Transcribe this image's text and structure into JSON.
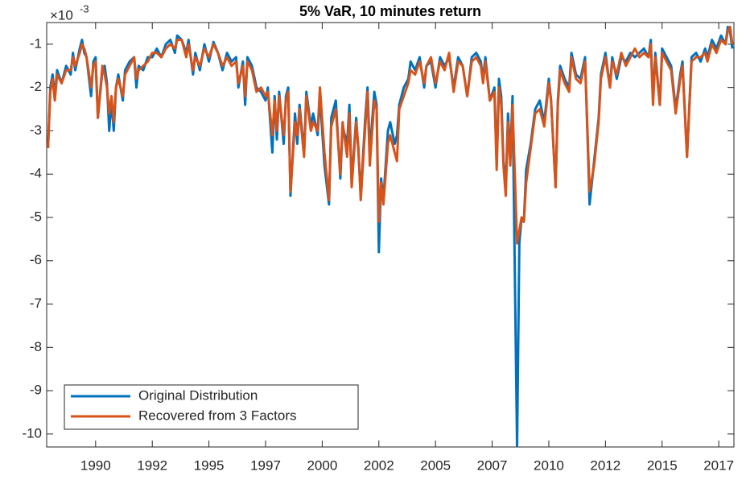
{
  "chart_data": {
    "type": "line",
    "title": "5% VaR, 10 minutes return",
    "y_multiplier_base": "×10",
    "y_multiplier_power": -3,
    "x": [
      1987.9,
      1988.0,
      1988.1,
      1988.2,
      1988.3,
      1988.5,
      1988.7,
      1988.9,
      1989.0,
      1989.1,
      1989.3,
      1989.4,
      1989.5,
      1989.6,
      1989.8,
      1989.9,
      1990.0,
      1990.1,
      1990.3,
      1990.4,
      1990.5,
      1990.6,
      1990.7,
      1990.8,
      1990.9,
      1991.0,
      1991.2,
      1991.3,
      1991.5,
      1991.7,
      1991.8,
      1991.9,
      1992.1,
      1992.3,
      1992.5,
      1992.7,
      1992.9,
      1993.1,
      1993.3,
      1993.5,
      1993.6,
      1993.8,
      1994.0,
      1994.1,
      1994.3,
      1994.4,
      1994.6,
      1994.8,
      1995.0,
      1995.2,
      1995.4,
      1995.6,
      1995.8,
      1996.0,
      1996.2,
      1996.3,
      1996.5,
      1996.6,
      1996.7,
      1996.9,
      1997.1,
      1997.3,
      1997.5,
      1997.6,
      1997.8,
      1997.9,
      1998.0,
      1998.1,
      1998.3,
      1998.4,
      1998.5,
      1998.6,
      1998.8,
      1998.9,
      1999.0,
      1999.2,
      1999.3,
      1999.5,
      1999.6,
      1999.8,
      1999.9,
      2000.1,
      2000.3,
      2000.4,
      2000.6,
      2000.8,
      2000.9,
      2001.1,
      2001.2,
      2001.3,
      2001.5,
      2001.6,
      2001.7,
      2001.9,
      2002.0,
      2002.1,
      2002.3,
      2002.4,
      2002.5,
      2002.6,
      2002.7,
      2002.9,
      2003.0,
      2003.2,
      2003.3,
      2003.4,
      2003.6,
      2003.8,
      2003.9,
      2004.1,
      2004.3,
      2004.5,
      2004.6,
      2004.8,
      2005.0,
      2005.2,
      2005.4,
      2005.6,
      2005.8,
      2006.0,
      2006.2,
      2006.4,
      2006.6,
      2006.8,
      2007.0,
      2007.1,
      2007.2,
      2007.4,
      2007.6,
      2007.7,
      2007.8,
      2007.9,
      2008.0,
      2008.1,
      2008.2,
      2008.3,
      2008.4,
      2008.6,
      2008.7,
      2008.8,
      2008.9,
      2009.0,
      2009.2,
      2009.4,
      2009.6,
      2009.8,
      2010.0,
      2010.1,
      2010.3,
      2010.4,
      2010.5,
      2010.7,
      2010.9,
      2011.0,
      2011.2,
      2011.4,
      2011.6,
      2011.8,
      2012.0,
      2012.2,
      2012.3,
      2012.5,
      2012.7,
      2012.8,
      2013.0,
      2013.2,
      2013.4,
      2013.6,
      2013.8,
      2014.0,
      2014.2,
      2014.4,
      2014.5,
      2014.6,
      2014.7,
      2014.9,
      2015.0,
      2015.2,
      2015.4,
      2015.6,
      2015.8,
      2015.9,
      2016.1,
      2016.3,
      2016.5,
      2016.7,
      2016.9,
      2017.0,
      2017.2,
      2017.4,
      2017.6,
      2017.8,
      2017.9,
      2018.0,
      2018.1
    ],
    "series": [
      {
        "name": "Original Distribution",
        "color": "#0072BD",
        "values": [
          -3.4,
          -2.0,
          -1.7,
          -2.2,
          -1.6,
          -1.9,
          -1.5,
          -1.7,
          -1.2,
          -1.6,
          -1.1,
          -0.9,
          -1.2,
          -1.3,
          -2.2,
          -1.4,
          -1.3,
          -2.7,
          -1.6,
          -1.5,
          -1.9,
          -3.0,
          -2.3,
          -3.0,
          -2.0,
          -1.7,
          -2.3,
          -1.6,
          -1.4,
          -1.3,
          -2.0,
          -1.5,
          -1.6,
          -1.3,
          -1.3,
          -1.1,
          -1.3,
          -1.0,
          -0.9,
          -1.2,
          -0.8,
          -0.9,
          -1.2,
          -0.9,
          -1.7,
          -1.2,
          -1.6,
          -1.0,
          -1.4,
          -0.95,
          -1.2,
          -1.6,
          -1.2,
          -1.4,
          -1.3,
          -2.0,
          -1.4,
          -2.4,
          -1.3,
          -1.5,
          -2.0,
          -2.1,
          -2.3,
          -2.0,
          -3.5,
          -2.2,
          -3.2,
          -2.1,
          -3.3,
          -2.2,
          -2.0,
          -4.5,
          -2.6,
          -3.3,
          -2.4,
          -3.5,
          -2.1,
          -2.9,
          -2.6,
          -3.1,
          -2.2,
          -3.8,
          -4.7,
          -2.7,
          -2.3,
          -4.1,
          -2.9,
          -3.3,
          -2.4,
          -4.2,
          -2.7,
          -3.5,
          -4.5,
          -2.7,
          -2.0,
          -3.5,
          -2.1,
          -2.4,
          -5.8,
          -4.1,
          -4.6,
          -3.0,
          -2.8,
          -3.3,
          -3.1,
          -2.4,
          -2.0,
          -1.8,
          -1.4,
          -1.6,
          -1.3,
          -2.0,
          -1.5,
          -1.4,
          -2.0,
          -1.3,
          -1.5,
          -1.3,
          -2.0,
          -1.3,
          -1.5,
          -2.2,
          -1.3,
          -1.2,
          -1.4,
          -1.8,
          -1.3,
          -2.3,
          -2.0,
          -3.8,
          -1.8,
          -2.2,
          -3.7,
          -4.3,
          -2.6,
          -3.6,
          -2.2,
          -10.3,
          -5.6,
          -5.0,
          -5.1,
          -3.9,
          -3.3,
          -2.5,
          -2.3,
          -2.8,
          -1.8,
          -2.3,
          -4.3,
          -2.3,
          -1.5,
          -1.8,
          -2.0,
          -1.2,
          -1.7,
          -1.8,
          -1.3,
          -4.7,
          -3.7,
          -2.7,
          -1.7,
          -1.2,
          -2.0,
          -1.3,
          -1.8,
          -1.3,
          -1.4,
          -1.2,
          -1.3,
          -1.2,
          -1.1,
          -1.3,
          -0.9,
          -2.3,
          -1.2,
          -2.4,
          -1.1,
          -1.3,
          -1.5,
          -2.5,
          -1.7,
          -1.4,
          -3.6,
          -1.3,
          -1.2,
          -1.4,
          -1.1,
          -1.3,
          -0.9,
          -1.1,
          -0.8,
          -1.0,
          -0.6,
          -0.7,
          -1.1
        ]
      },
      {
        "name": "Recovered from 3 Factors",
        "color": "#D95319",
        "values": [
          -3.4,
          -2.1,
          -1.8,
          -2.3,
          -1.7,
          -1.9,
          -1.6,
          -1.6,
          -1.3,
          -1.5,
          -1.2,
          -1.0,
          -1.1,
          -1.3,
          -2.0,
          -1.5,
          -1.4,
          -2.7,
          -1.5,
          -1.7,
          -2.0,
          -2.6,
          -2.2,
          -2.8,
          -2.0,
          -1.8,
          -2.2,
          -1.7,
          -1.5,
          -1.3,
          -1.8,
          -1.6,
          -1.5,
          -1.4,
          -1.2,
          -1.2,
          -1.3,
          -1.1,
          -1.0,
          -1.1,
          -0.9,
          -0.9,
          -1.3,
          -1.0,
          -1.6,
          -1.3,
          -1.5,
          -1.1,
          -1.3,
          -1.0,
          -1.2,
          -1.5,
          -1.3,
          -1.5,
          -1.4,
          -1.9,
          -1.5,
          -2.2,
          -1.4,
          -1.6,
          -2.1,
          -2.0,
          -2.2,
          -2.1,
          -3.1,
          -2.3,
          -3.0,
          -2.2,
          -3.1,
          -2.3,
          -2.1,
          -4.4,
          -2.8,
          -3.1,
          -2.5,
          -3.6,
          -2.2,
          -3.0,
          -2.8,
          -3.0,
          -2.0,
          -3.5,
          -4.6,
          -2.9,
          -2.5,
          -4.0,
          -2.8,
          -3.6,
          -2.6,
          -4.3,
          -2.8,
          -3.4,
          -4.6,
          -2.9,
          -2.1,
          -3.8,
          -2.3,
          -2.5,
          -5.1,
          -4.2,
          -4.7,
          -3.3,
          -3.1,
          -3.5,
          -3.7,
          -2.5,
          -2.2,
          -1.9,
          -1.6,
          -1.7,
          -1.4,
          -1.9,
          -1.5,
          -1.3,
          -1.9,
          -1.4,
          -1.6,
          -1.2,
          -2.1,
          -1.4,
          -1.5,
          -2.2,
          -1.4,
          -1.3,
          -1.5,
          -1.9,
          -1.4,
          -2.3,
          -2.1,
          -3.9,
          -2.0,
          -2.4,
          -3.8,
          -4.5,
          -2.8,
          -3.8,
          -2.4,
          -5.6,
          -5.3,
          -5.0,
          -5.1,
          -4.2,
          -3.4,
          -2.6,
          -2.5,
          -2.9,
          -1.9,
          -2.3,
          -4.3,
          -2.4,
          -1.6,
          -1.9,
          -2.1,
          -1.3,
          -1.8,
          -1.9,
          -1.4,
          -4.4,
          -3.8,
          -2.8,
          -1.8,
          -1.3,
          -2.0,
          -1.4,
          -1.7,
          -1.2,
          -1.5,
          -1.3,
          -1.1,
          -1.3,
          -1.2,
          -1.3,
          -1.0,
          -2.4,
          -1.3,
          -2.4,
          -1.2,
          -1.4,
          -1.6,
          -2.6,
          -1.8,
          -1.5,
          -3.6,
          -1.4,
          -1.3,
          -1.3,
          -1.2,
          -1.4,
          -1.0,
          -1.2,
          -0.9,
          -1.0,
          -0.7,
          -0.6,
          -1.0
        ]
      }
    ],
    "xlim": [
      1987.84,
      2018.17
    ],
    "xticks": [
      1990,
      {
        "value": 1992.5,
        "label": "1992"
      },
      1995,
      {
        "value": 1997.5,
        "label": "1997"
      },
      2000,
      {
        "value": 2002.5,
        "label": "2002"
      },
      2005,
      {
        "value": 2007.5,
        "label": "2007"
      },
      2010,
      {
        "value": 2012.5,
        "label": "2012"
      },
      2015,
      {
        "value": 2017.5,
        "label": "2017"
      }
    ],
    "ylim": [
      -10.3,
      -0.5
    ],
    "yticks": [
      -10,
      -9,
      -8,
      -7,
      -6,
      -5,
      -4,
      -3,
      -2,
      -1
    ],
    "grid": false,
    "legend_location": "southwest"
  }
}
